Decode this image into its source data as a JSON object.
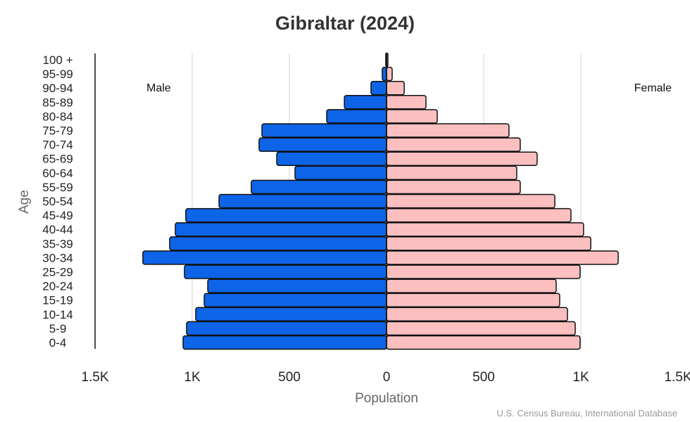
{
  "chart_data": {
    "type": "bar",
    "orientation": "horizontal-pyramid",
    "title": "Gibraltar (2024)",
    "xlabel": "Population",
    "ylabel": "Age",
    "xlim": [
      -1500,
      1500
    ],
    "x_ticks": [
      {
        "value": -1500,
        "label": "1.5K"
      },
      {
        "value": -1000,
        "label": "1K"
      },
      {
        "value": -500,
        "label": "500"
      },
      {
        "value": 0,
        "label": "0"
      },
      {
        "value": 500,
        "label": "500"
      },
      {
        "value": 1000,
        "label": "1K"
      },
      {
        "value": 1500,
        "label": "1.5K"
      }
    ],
    "grid": true,
    "categories": [
      "0-4",
      "5-9",
      "10-14",
      "15-19",
      "20-24",
      "25-29",
      "30-34",
      "35-39",
      "40-44",
      "45-49",
      "50-54",
      "55-59",
      "60-64",
      "65-69",
      "70-74",
      "75-79",
      "80-84",
      "85-89",
      "90-94",
      "95-99",
      "100 +"
    ],
    "series": [
      {
        "name": "Male",
        "color": "#0e64e6",
        "legend_position": "top-left",
        "values": [
          1047,
          1029,
          982,
          938,
          920,
          1040,
          1254,
          1116,
          1087,
          1033,
          862,
          696,
          471,
          565,
          656,
          641,
          308,
          217,
          80,
          22,
          4
        ]
      },
      {
        "name": "Female",
        "color": "#fbbfbf",
        "legend_position": "top-right",
        "values": [
          996,
          971,
          931,
          891,
          873,
          996,
          1192,
          1051,
          1014,
          949,
          866,
          688,
          670,
          775,
          688,
          630,
          261,
          203,
          91,
          29,
          7
        ]
      }
    ],
    "source": "U.S. Census Bureau, International Database"
  }
}
